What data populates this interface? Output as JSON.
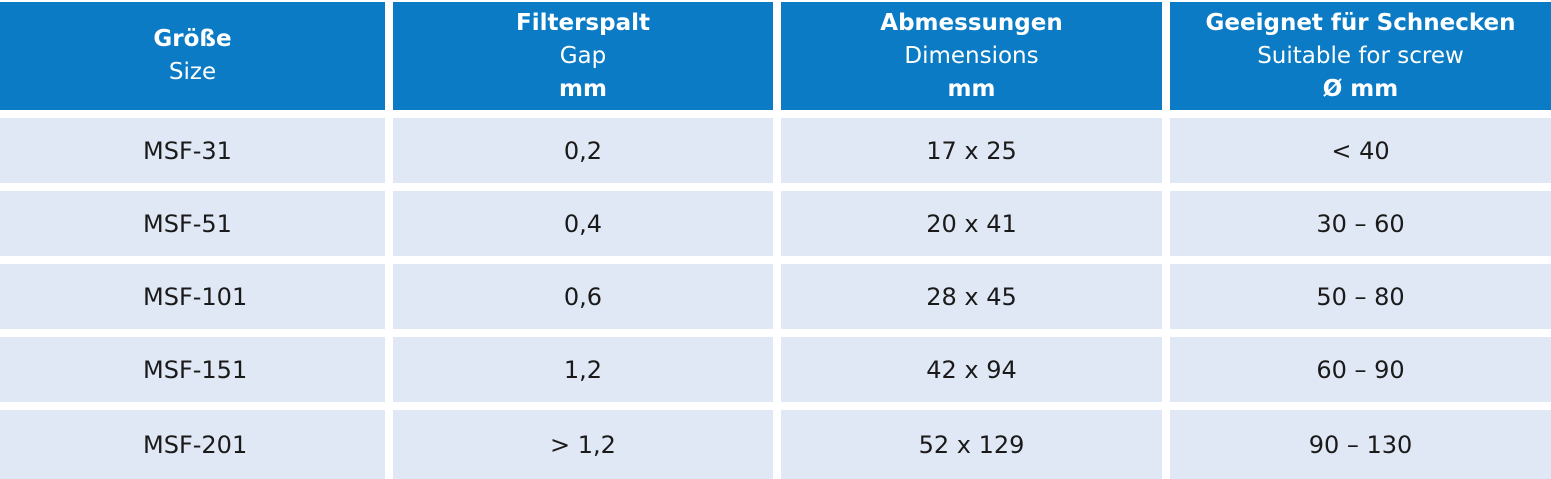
{
  "header": [
    {
      "de": "Größe",
      "en": "Size",
      "unit": ""
    },
    {
      "de": "Filterspalt",
      "en": "Gap",
      "unit": "mm"
    },
    {
      "de": "Abmessungen",
      "en": "Dimensions",
      "unit": "mm"
    },
    {
      "de": "Geeignet für Schnecken",
      "en": "Suitable for screw",
      "unit": "Ø mm"
    }
  ],
  "rows": [
    [
      "MSF-31",
      "0,2",
      "17 x 25",
      "< 40"
    ],
    [
      "MSF-51",
      "0,4",
      "20 x 41",
      "30 – 60"
    ],
    [
      "MSF-101",
      "0,6",
      "28 x 45",
      "50 – 80"
    ],
    [
      "MSF-151",
      "1,2",
      "42 x 94",
      "60 – 90"
    ],
    [
      "MSF-201",
      "> 1,2",
      "52 x 129",
      "90 – 130"
    ]
  ],
  "colors": {
    "header_bg": "#0a7bc4",
    "header_text": "#ffffff",
    "body_bg": "#e1e8f5",
    "body_text": "#1a1a1a"
  }
}
